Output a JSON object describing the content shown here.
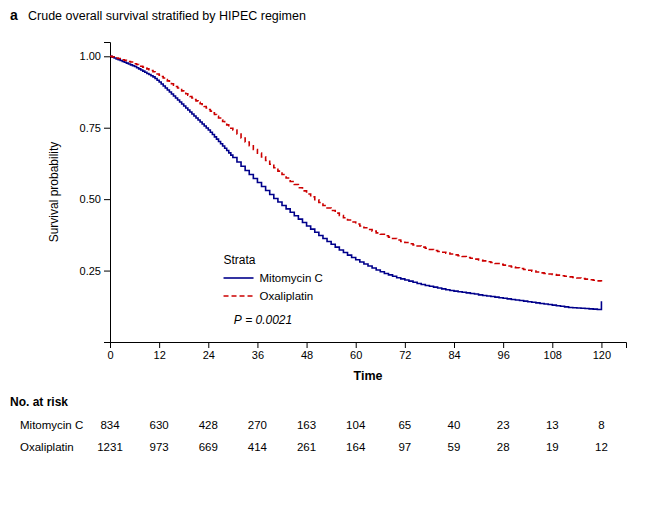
{
  "chart_data": {
    "type": "step",
    "panel_label": "a",
    "title": "Crude overall survival stratified by HIPEC regimen",
    "xlabel": "Time",
    "ylabel": "Survival probability",
    "xlim": [
      0,
      126
    ],
    "ylim": [
      0,
      1.05
    ],
    "xticks": [
      0,
      12,
      24,
      36,
      48,
      60,
      72,
      84,
      96,
      108,
      120
    ],
    "yticks": [
      0.25,
      {
        "value": 0.5,
        "label": "0.50"
      },
      0.75,
      {
        "value": 1.0,
        "label": "1.00"
      }
    ],
    "grid": false,
    "legend": "lower left",
    "legend_title": "Strata",
    "annotation": "P = 0.0021",
    "x": [
      0,
      0.5,
      1,
      1.5,
      2,
      2.5,
      3,
      3.5,
      4,
      4.5,
      5,
      5.5,
      6,
      6.5,
      7,
      7.5,
      8,
      8.5,
      9,
      9.5,
      10,
      10.5,
      11,
      11.5,
      12,
      12.5,
      13,
      13.5,
      14,
      14.5,
      15,
      15.5,
      16,
      16.5,
      17,
      17.5,
      18,
      18.5,
      19,
      19.5,
      20,
      20.5,
      21,
      21.5,
      22,
      22.5,
      23,
      23.5,
      24,
      24.5,
      25,
      25.5,
      26,
      26.5,
      27,
      27.5,
      28,
      28.5,
      29,
      29.5,
      30,
      31,
      32,
      33,
      34,
      35,
      36,
      37,
      38,
      39,
      40,
      41,
      42,
      43,
      44,
      45,
      46,
      47,
      48,
      49,
      50,
      51,
      52,
      53,
      54,
      55,
      56,
      57,
      58,
      59,
      60,
      61,
      62,
      63,
      64,
      65,
      66,
      67,
      68,
      69,
      70,
      71,
      72,
      73,
      74,
      75,
      76,
      77,
      78,
      79,
      80,
      81,
      82,
      83,
      84,
      85,
      86,
      87,
      88,
      89,
      90,
      91,
      92,
      93,
      94,
      95,
      96,
      97,
      98,
      99,
      100,
      101,
      102,
      103,
      104,
      105,
      106,
      107,
      108,
      109,
      110,
      111,
      112,
      113,
      114,
      115,
      116,
      117,
      118,
      119,
      120
    ],
    "series": [
      {
        "name": "Mitomycin C",
        "color": "#00008B",
        "line_style": "solid",
        "values": [
          1.0,
          0.997,
          0.994,
          0.991,
          0.988,
          0.985,
          0.982,
          0.979,
          0.976,
          0.973,
          0.97,
          0.967,
          0.964,
          0.96,
          0.956,
          0.952,
          0.948,
          0.944,
          0.94,
          0.936,
          0.932,
          0.928,
          0.922,
          0.916,
          0.91,
          0.903,
          0.896,
          0.889,
          0.882,
          0.875,
          0.868,
          0.861,
          0.854,
          0.847,
          0.84,
          0.833,
          0.826,
          0.819,
          0.812,
          0.805,
          0.798,
          0.791,
          0.784,
          0.777,
          0.77,
          0.763,
          0.756,
          0.749,
          0.742,
          0.734,
          0.726,
          0.718,
          0.71,
          0.702,
          0.694,
          0.686,
          0.678,
          0.67,
          0.662,
          0.654,
          0.646,
          0.63,
          0.615,
          0.6,
          0.586,
          0.572,
          0.558,
          0.544,
          0.53,
          0.516,
          0.502,
          0.49,
          0.478,
          0.466,
          0.454,
          0.442,
          0.43,
          0.418,
          0.406,
          0.395,
          0.384,
          0.373,
          0.362,
          0.352,
          0.342,
          0.332,
          0.322,
          0.313,
          0.304,
          0.296,
          0.288,
          0.28,
          0.273,
          0.266,
          0.259,
          0.252,
          0.246,
          0.24,
          0.235,
          0.23,
          0.225,
          0.221,
          0.217,
          0.213,
          0.209,
          0.205,
          0.201,
          0.198,
          0.195,
          0.192,
          0.189,
          0.186,
          0.183,
          0.18,
          0.178,
          0.176,
          0.174,
          0.172,
          0.17,
          0.168,
          0.165,
          0.163,
          0.161,
          0.159,
          0.157,
          0.155,
          0.153,
          0.151,
          0.149,
          0.147,
          0.145,
          0.143,
          0.141,
          0.139,
          0.137,
          0.135,
          0.133,
          0.131,
          0.129,
          0.127,
          0.125,
          0.123,
          0.121,
          0.12,
          0.119,
          0.118,
          0.117,
          0.116,
          0.115,
          0.114,
          0.143
        ]
      },
      {
        "name": "Oxaliplatin",
        "color": "#CC0000",
        "line_style": "dashed",
        "values": [
          1.0,
          0.998,
          0.996,
          0.994,
          0.992,
          0.99,
          0.988,
          0.986,
          0.984,
          0.982,
          0.98,
          0.977,
          0.974,
          0.971,
          0.968,
          0.965,
          0.962,
          0.959,
          0.956,
          0.953,
          0.95,
          0.946,
          0.942,
          0.938,
          0.934,
          0.929,
          0.924,
          0.919,
          0.914,
          0.909,
          0.904,
          0.899,
          0.894,
          0.889,
          0.884,
          0.879,
          0.874,
          0.869,
          0.864,
          0.859,
          0.854,
          0.849,
          0.844,
          0.839,
          0.834,
          0.829,
          0.824,
          0.819,
          0.814,
          0.808,
          0.802,
          0.796,
          0.79,
          0.784,
          0.778,
          0.772,
          0.766,
          0.76,
          0.754,
          0.748,
          0.742,
          0.728,
          0.714,
          0.7,
          0.687,
          0.674,
          0.661,
          0.648,
          0.635,
          0.622,
          0.61,
          0.598,
          0.586,
          0.574,
          0.562,
          0.551,
          0.54,
          0.529,
          0.518,
          0.508,
          0.498,
          0.488,
          0.478,
          0.469,
          0.46,
          0.451,
          0.443,
          0.435,
          0.427,
          0.42,
          0.413,
          0.406,
          0.4,
          0.394,
          0.388,
          0.382,
          0.377,
          0.372,
          0.367,
          0.362,
          0.357,
          0.352,
          0.348,
          0.344,
          0.34,
          0.336,
          0.332,
          0.328,
          0.324,
          0.32,
          0.317,
          0.314,
          0.311,
          0.308,
          0.305,
          0.302,
          0.299,
          0.296,
          0.293,
          0.29,
          0.287,
          0.284,
          0.281,
          0.278,
          0.275,
          0.272,
          0.269,
          0.266,
          0.263,
          0.26,
          0.257,
          0.254,
          0.251,
          0.248,
          0.245,
          0.242,
          0.24,
          0.238,
          0.236,
          0.234,
          0.232,
          0.23,
          0.228,
          0.226,
          0.224,
          0.222,
          0.22,
          0.218,
          0.216,
          0.214,
          0.212
        ]
      }
    ],
    "risk_table": {
      "label": "No. at risk",
      "times": [
        0,
        12,
        24,
        36,
        48,
        60,
        72,
        84,
        96,
        108,
        120
      ],
      "rows": [
        {
          "name": "Mitomycin C",
          "values": [
            834,
            630,
            428,
            270,
            163,
            104,
            65,
            40,
            23,
            13,
            8
          ]
        },
        {
          "name": "Oxaliplatin",
          "values": [
            1231,
            973,
            669,
            414,
            261,
            164,
            97,
            59,
            28,
            19,
            12
          ]
        }
      ]
    }
  }
}
